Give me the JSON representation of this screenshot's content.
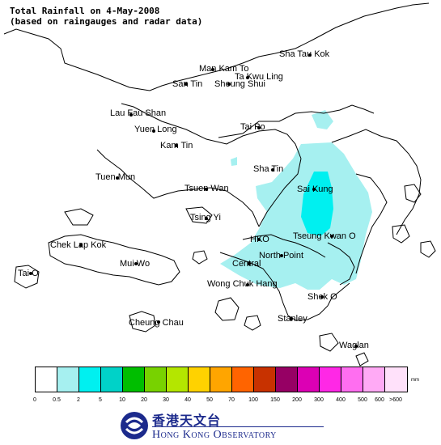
{
  "title": {
    "line1": "Total Rainfall on 4-May-2008",
    "line2": "(based on raingauges and radar data)"
  },
  "places": {
    "sha_tau_kok": "Sha Tau Kok",
    "man_kam_to": "Man Kam To",
    "ta_kwu_ling": "Ta Kwu Ling",
    "san_tin": "San Tin",
    "sheung_shui": "Sheung Shui",
    "lau_fau_shan": "Lau Fau Shan",
    "yuen_long": "Yuen Long",
    "kam_tin": "Kam Tin",
    "tai_po": "Tai Po",
    "tuen_mun": "Tuen Mun",
    "sha_tin": "Sha Tin",
    "tsuen_wan": "Tsuen Wan",
    "sai_kung": "Sai Kung",
    "tsing_yi": "Tsing Yi",
    "chek_lap_kok": "Chek Lap Kok",
    "hko": "HKO",
    "tseung_kwan_o": "Tseung Kwan O",
    "north_point": "North Point",
    "mui_wo": "Mui Wo",
    "central": "Central",
    "tai_o": "Tai O",
    "wong_chuk_hang": "Wong Chuk Hang",
    "shek_o": "Shek O",
    "cheung_chau": "Cheung Chau",
    "stanley": "Stanley",
    "waglan": "Waglan"
  },
  "legend": {
    "unit": "mm",
    "colors": [
      "#ffffff",
      "#a6f0f0",
      "#00f0f0",
      "#00d2c8",
      "#00be00",
      "#78d200",
      "#b4e600",
      "#ffd200",
      "#ffa500",
      "#ff6400",
      "#c83200",
      "#960064",
      "#dc00b4",
      "#ff28e6",
      "#ff6ef0",
      "#ffaaf5",
      "#ffe1fa"
    ],
    "labels": [
      "0",
      "0.5",
      "2",
      "5",
      "10",
      "20",
      "30",
      "40",
      "50",
      "70",
      "100",
      "150",
      "200",
      "300",
      "400",
      "500",
      "600",
      ">600"
    ]
  },
  "logo": {
    "chinese": "香港天文台",
    "english": "Hong Kong Observatory"
  },
  "rain_colors": {
    "light": "#a6f0f0",
    "moderate": "#00f0f0"
  }
}
